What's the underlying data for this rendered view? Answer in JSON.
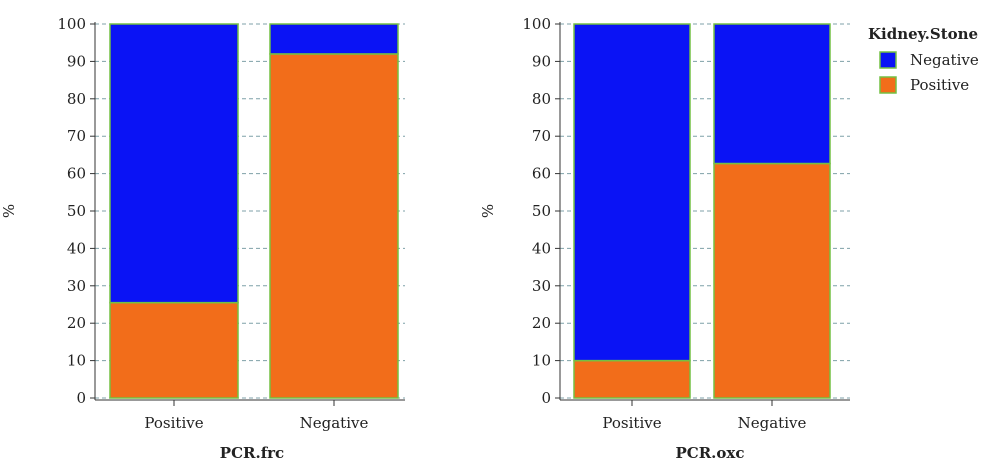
{
  "chart_data": [
    {
      "type": "bar",
      "stacked": true,
      "title": "",
      "xlabel": "PCR.frc",
      "ylabel": "%",
      "ylim": [
        0,
        100
      ],
      "yticks": [
        0,
        10,
        20,
        30,
        40,
        50,
        60,
        70,
        80,
        90,
        100
      ],
      "categories": [
        "Positive",
        "Negative"
      ],
      "series": [
        {
          "name": "Positive",
          "color": "#f26d1a",
          "values": [
            25.5,
            92
          ]
        },
        {
          "name": "Negative",
          "color": "#0a13f5",
          "values": [
            74.5,
            8
          ]
        }
      ],
      "grid": true
    },
    {
      "type": "bar",
      "stacked": true,
      "title": "",
      "xlabel": "PCR.oxc",
      "ylabel": "%",
      "ylim": [
        0,
        100
      ],
      "yticks": [
        0,
        10,
        20,
        30,
        40,
        50,
        60,
        70,
        80,
        90,
        100
      ],
      "categories": [
        "Positive",
        "Negative"
      ],
      "series": [
        {
          "name": "Positive",
          "color": "#f26d1a",
          "values": [
            10,
            62.7
          ]
        },
        {
          "name": "Negative",
          "color": "#0a13f5",
          "values": [
            90,
            37.3
          ]
        }
      ],
      "grid": true
    }
  ],
  "legend": {
    "title": "Kidney.Stone",
    "placement": "top-right",
    "items": [
      {
        "label": "Negative",
        "color": "#0a13f5"
      },
      {
        "label": "Positive",
        "color": "#f26d1a"
      }
    ]
  }
}
